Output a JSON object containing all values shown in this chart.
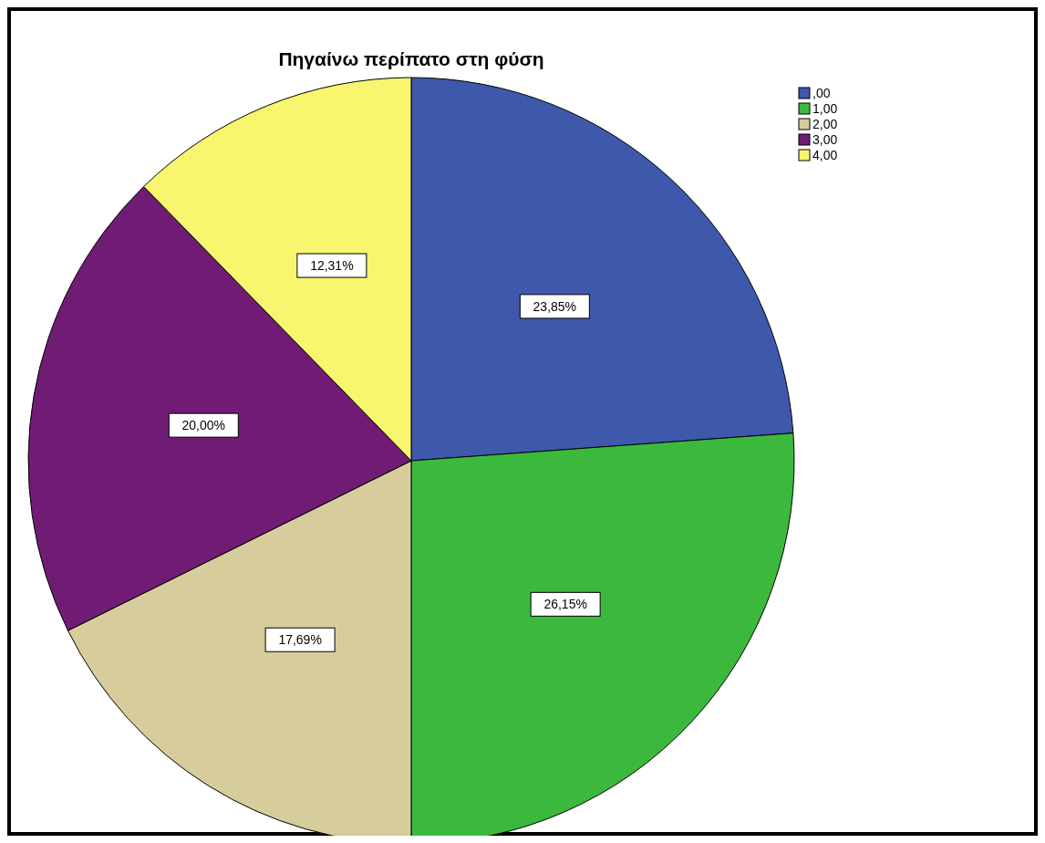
{
  "chart_data": {
    "type": "pie",
    "title": "Πηγαίνω περίπατο στη φύση",
    "categories": [
      ",00",
      "1,00",
      "2,00",
      "3,00",
      "4,00"
    ],
    "values": [
      23.85,
      26.15,
      17.69,
      20.0,
      12.31
    ],
    "value_labels": [
      "23,85%",
      "26,15%",
      "17,69%",
      "20,00%",
      "12,31%"
    ],
    "colors": [
      "#3e58ac",
      "#3cb93c",
      "#d6cc9c",
      "#701c74",
      "#f8f56e"
    ],
    "legend": "top right"
  }
}
